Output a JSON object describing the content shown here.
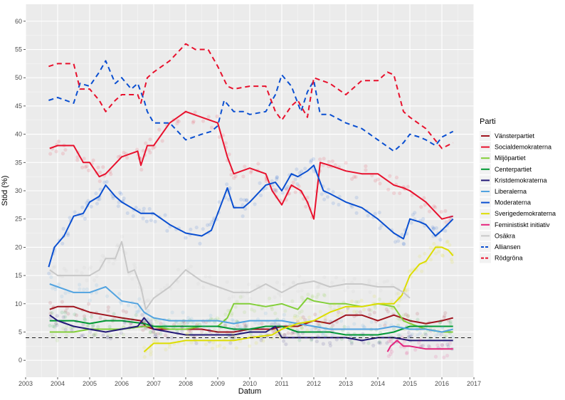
{
  "chart_data": {
    "type": "line",
    "xlabel": "Datum",
    "ylabel": "Stöd (%)",
    "xlim": [
      2003,
      2017
    ],
    "ylim": [
      -3,
      63
    ],
    "x_ticks": [
      2003,
      2004,
      2005,
      2006,
      2007,
      2008,
      2009,
      2010,
      2011,
      2012,
      2013,
      2014,
      2015,
      2016,
      2017
    ],
    "y_ticks": [
      0,
      5,
      10,
      15,
      20,
      25,
      30,
      35,
      40,
      45,
      50,
      55,
      60
    ],
    "reference_line": {
      "y": 4,
      "style": "dashed",
      "color": "#000000"
    },
    "legend": {
      "title": "Parti",
      "position": "right"
    },
    "grid": true,
    "panel_background": "#ebebeb",
    "series": [
      {
        "name": "Vänsterpartiet",
        "color": "#a0141e",
        "dash": false,
        "x": [
          2003.75,
          2004.0,
          2004.5,
          2005.0,
          2005.5,
          2006.0,
          2006.6,
          2006.75,
          2007.0,
          2007.5,
          2008.0,
          2008.5,
          2009.0,
          2009.5,
          2010.0,
          2010.7,
          2011.0,
          2011.5,
          2012.0,
          2012.5,
          2013.0,
          2013.5,
          2014.0,
          2014.5,
          2015.0,
          2015.5,
          2016.0,
          2016.35
        ],
        "y": [
          9,
          9.5,
          9.5,
          8.5,
          8,
          7.5,
          7,
          6,
          5.5,
          5.5,
          5.5,
          5.5,
          5,
          5,
          5.5,
          5.5,
          6,
          6,
          7,
          6.5,
          8,
          8,
          7,
          8,
          7,
          6.5,
          7,
          7.5
        ]
      },
      {
        "name": "Socialdemokraterna",
        "color": "#e8112d",
        "dash": false,
        "x": [
          2003.75,
          2004.0,
          2004.5,
          2004.8,
          2005.0,
          2005.3,
          2005.5,
          2006.0,
          2006.5,
          2006.6,
          2006.8,
          2007.0,
          2007.5,
          2008.0,
          2008.5,
          2009.0,
          2009.3,
          2009.5,
          2010.0,
          2010.5,
          2010.7,
          2011.0,
          2011.3,
          2011.6,
          2011.8,
          2012.0,
          2012.2,
          2012.5,
          2013.0,
          2013.5,
          2014.0,
          2014.5,
          2014.8,
          2015.0,
          2015.5,
          2016.0,
          2016.35
        ],
        "y": [
          37.5,
          38,
          38,
          35,
          35,
          32.5,
          33,
          36,
          37,
          34.5,
          38,
          38,
          42,
          44,
          43,
          42,
          36,
          33,
          34,
          33,
          30,
          27.5,
          31,
          30,
          28,
          25,
          35,
          34.5,
          33.5,
          33,
          33,
          31,
          30.5,
          30,
          28,
          25,
          25.5
        ]
      },
      {
        "name": "Miljöpartiet",
        "color": "#83cf39",
        "dash": false,
        "x": [
          2003.75,
          2004.0,
          2004.5,
          2005.0,
          2005.5,
          2006.0,
          2006.7,
          2007.0,
          2007.5,
          2008.0,
          2008.5,
          2009.0,
          2009.3,
          2009.5,
          2010.0,
          2010.5,
          2011.0,
          2011.5,
          2011.8,
          2012.0,
          2012.5,
          2013.0,
          2013.5,
          2014.0,
          2014.5,
          2014.8,
          2015.0,
          2015.5,
          2016.0,
          2016.35
        ],
        "y": [
          5,
          5,
          5,
          5.5,
          5.5,
          5.5,
          6,
          6,
          5.5,
          5.5,
          6,
          6,
          7.5,
          10,
          10,
          9.5,
          10,
          9,
          11,
          10.5,
          10,
          10,
          9.5,
          10,
          9.5,
          7,
          6.5,
          5.5,
          5,
          5
        ]
      },
      {
        "name": "Centerpartiet",
        "color": "#009933",
        "dash": false,
        "x": [
          2003.75,
          2004.0,
          2004.5,
          2005.0,
          2005.5,
          2006.0,
          2006.7,
          2007.0,
          2007.5,
          2008.0,
          2008.5,
          2009.0,
          2009.5,
          2010.0,
          2010.5,
          2011.0,
          2011.5,
          2012.0,
          2012.5,
          2013.0,
          2013.5,
          2014.0,
          2014.5,
          2015.0,
          2015.5,
          2016.0,
          2016.35
        ],
        "y": [
          7,
          7,
          7,
          6.5,
          7,
          7,
          6.5,
          6,
          6,
          6,
          6,
          6,
          5.5,
          5.5,
          6,
          6,
          5,
          5,
          5,
          4.5,
          4.5,
          4.5,
          5,
          6,
          6,
          6,
          6
        ]
      },
      {
        "name": "Kristdemokraterna",
        "color": "#231977",
        "dash": false,
        "x": [
          2003.75,
          2004.0,
          2004.5,
          2005.0,
          2005.5,
          2006.0,
          2006.5,
          2006.7,
          2007.0,
          2007.5,
          2008.0,
          2008.5,
          2009.0,
          2009.5,
          2010.0,
          2010.5,
          2010.8,
          2011.0,
          2011.5,
          2012.0,
          2012.5,
          2013.0,
          2013.5,
          2014.0,
          2014.5,
          2015.0,
          2015.5,
          2016.0,
          2016.35
        ],
        "y": [
          8,
          7,
          6,
          5.5,
          5,
          5.5,
          6,
          7.5,
          5.5,
          5,
          4.5,
          4.5,
          4.5,
          4.5,
          5,
          5,
          6,
          4,
          4,
          4,
          4,
          4,
          3.5,
          4,
          4,
          3.5,
          3.5,
          3.5,
          3.5
        ]
      },
      {
        "name": "Liberalerna",
        "color": "#52a3e0",
        "dash": false,
        "x": [
          2003.75,
          2004.0,
          2004.5,
          2005.0,
          2005.5,
          2006.0,
          2006.5,
          2006.7,
          2007.0,
          2007.5,
          2008.0,
          2008.5,
          2009.0,
          2009.5,
          2010.0,
          2010.5,
          2011.0,
          2011.5,
          2012.0,
          2012.5,
          2013.0,
          2013.5,
          2014.0,
          2014.5,
          2015.0,
          2015.5,
          2016.0,
          2016.35
        ],
        "y": [
          13.5,
          13,
          12,
          12,
          13,
          10.5,
          10,
          8.5,
          7.5,
          7,
          7,
          7,
          7,
          6.5,
          7,
          7,
          7,
          6.5,
          6,
          5.5,
          5.5,
          5.5,
          5.5,
          6,
          5.5,
          5.5,
          5,
          5.5
        ]
      },
      {
        "name": "Moderaterna",
        "color": "#0a4fd1",
        "dash": false,
        "x": [
          2003.72,
          2003.9,
          2004.2,
          2004.5,
          2004.8,
          2005.0,
          2005.3,
          2005.5,
          2005.8,
          2006.0,
          2006.3,
          2006.6,
          2006.8,
          2007.0,
          2007.5,
          2008.0,
          2008.5,
          2008.8,
          2009.0,
          2009.3,
          2009.5,
          2009.8,
          2010.0,
          2010.5,
          2010.8,
          2011.0,
          2011.3,
          2011.5,
          2011.8,
          2012.0,
          2012.3,
          2012.5,
          2013.0,
          2013.5,
          2014.0,
          2014.5,
          2014.8,
          2015.0,
          2015.3,
          2015.5,
          2015.8,
          2016.0,
          2016.35
        ],
        "y": [
          16.5,
          20,
          22,
          25.5,
          26,
          28,
          29,
          31,
          29,
          28,
          27,
          26,
          26,
          26,
          24,
          22.5,
          22,
          23,
          26,
          30.5,
          27,
          27,
          28,
          31,
          31.5,
          30,
          33,
          32.5,
          33.5,
          34.5,
          30,
          29.5,
          28,
          27,
          25,
          22.5,
          21.5,
          25,
          24.5,
          24,
          22,
          23,
          25
        ]
      },
      {
        "name": "Sverigedemokraterna",
        "color": "#dddd00",
        "dash": false,
        "x": [
          2006.7,
          2006.9,
          2007.0,
          2007.5,
          2008.0,
          2008.5,
          2009.0,
          2009.5,
          2010.0,
          2010.7,
          2011.0,
          2011.5,
          2012.0,
          2012.5,
          2013.0,
          2013.5,
          2014.0,
          2014.5,
          2014.75,
          2015.0,
          2015.3,
          2015.5,
          2015.8,
          2016.0,
          2016.2,
          2016.35
        ],
        "y": [
          1.5,
          2.5,
          3,
          3,
          3.5,
          3.5,
          3.5,
          3.5,
          4,
          4.5,
          5.5,
          6.5,
          7,
          8.5,
          9.5,
          9.5,
          10,
          10,
          11.5,
          15,
          17,
          17.5,
          20,
          20,
          19.5,
          18.5
        ]
      },
      {
        "name": "Feministiskt initiativ",
        "color": "#e5247d",
        "dash": false,
        "x": [
          2014.3,
          2014.4,
          2014.6,
          2014.8,
          2015.0,
          2015.5,
          2016.0,
          2016.35
        ],
        "y": [
          1.5,
          2.5,
          3.5,
          2.5,
          2.5,
          2,
          2,
          2
        ]
      },
      {
        "name": "Osäkra",
        "color": "#c8c8c8",
        "dash": false,
        "x": [
          2003.75,
          2004.0,
          2004.5,
          2005.0,
          2005.3,
          2005.5,
          2005.8,
          2006.0,
          2006.2,
          2006.4,
          2006.6,
          2006.75,
          2007.0,
          2007.5,
          2008.0,
          2008.5,
          2009.0,
          2009.5,
          2010.0,
          2010.5,
          2011.0,
          2011.5,
          2012.0,
          2012.5,
          2013.0,
          2013.5,
          2014.0,
          2014.5,
          2014.8,
          2015.0
        ],
        "y": [
          16,
          15,
          15,
          15,
          16,
          18,
          18,
          21,
          15.5,
          16,
          13,
          9,
          11,
          13,
          16,
          14,
          13,
          12,
          12,
          13.5,
          12,
          13.5,
          14,
          13,
          13.5,
          13.5,
          13,
          13,
          12,
          11
        ]
      },
      {
        "name": "Alliansen",
        "color": "#0a4fd1",
        "dash": true,
        "x": [
          2003.72,
          2004.0,
          2004.5,
          2004.7,
          2005.0,
          2005.3,
          2005.5,
          2005.8,
          2006.0,
          2006.3,
          2006.5,
          2006.7,
          2006.8,
          2007.0,
          2007.5,
          2008.0,
          2008.5,
          2008.8,
          2009.0,
          2009.2,
          2009.5,
          2009.8,
          2010.0,
          2010.5,
          2010.8,
          2011.0,
          2011.3,
          2011.6,
          2011.8,
          2012.0,
          2012.2,
          2012.5,
          2013.0,
          2013.5,
          2014.0,
          2014.5,
          2014.8,
          2015.0,
          2015.3,
          2015.5,
          2015.8,
          2016.0,
          2016.35
        ],
        "y": [
          46,
          46.5,
          45.5,
          49,
          48.5,
          51,
          53,
          49,
          50,
          48,
          49,
          46,
          44,
          42,
          42,
          39,
          40,
          40.5,
          41.5,
          46,
          44,
          44,
          43.5,
          44,
          47,
          50.5,
          48.5,
          44,
          47.5,
          49.5,
          43.5,
          43.5,
          42,
          41,
          39,
          37,
          38.5,
          40,
          39.5,
          39,
          38,
          39.5,
          40.5
        ]
      },
      {
        "name": "Rödgröna",
        "color": "#e8112d",
        "dash": true,
        "x": [
          2003.72,
          2004.0,
          2004.5,
          2004.7,
          2005.0,
          2005.3,
          2005.5,
          2005.8,
          2006.0,
          2006.5,
          2006.6,
          2006.8,
          2007.0,
          2007.5,
          2008.0,
          2008.3,
          2008.7,
          2009.0,
          2009.3,
          2009.5,
          2010.0,
          2010.5,
          2010.8,
          2011.0,
          2011.3,
          2011.5,
          2011.8,
          2012.0,
          2012.5,
          2013.0,
          2013.5,
          2014.0,
          2014.3,
          2014.5,
          2014.8,
          2015.0,
          2015.5,
          2016.0,
          2016.35
        ],
        "y": [
          52,
          52.5,
          52.5,
          48,
          48,
          46,
          44,
          46,
          47,
          47,
          45.5,
          50,
          51,
          53,
          56,
          55,
          55,
          52,
          48.5,
          48,
          48.5,
          48.5,
          44,
          42.5,
          45,
          46,
          43,
          50,
          49,
          47,
          49.5,
          49.5,
          51,
          50.5,
          44,
          43,
          41,
          37.5,
          38.5
        ]
      }
    ]
  }
}
